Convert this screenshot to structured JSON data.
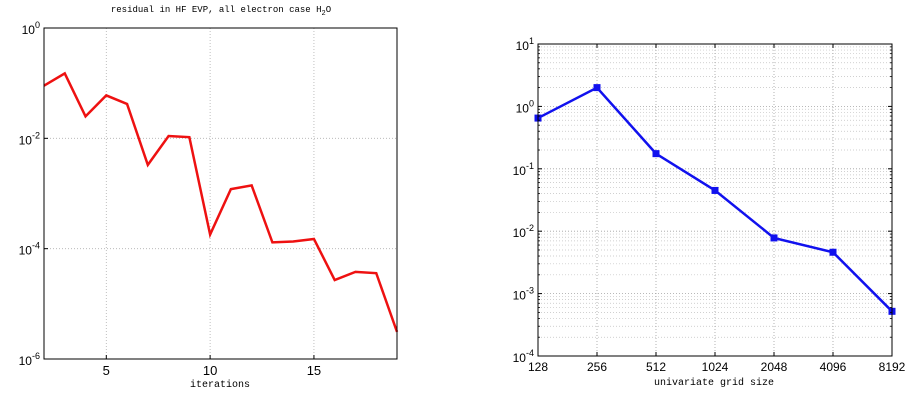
{
  "chart_data": [
    {
      "type": "line",
      "title": "residual in HF EVP, all electron case H",
      "title_subscript": "2",
      "title_suffix": "O",
      "xlabel": "iterations",
      "ylabel": "",
      "xlim": [
        2,
        19
      ],
      "ylim": [
        1e-06,
        1
      ],
      "yscale": "log",
      "grid": true,
      "line_color": "#ee1111",
      "xticks": [
        {
          "value": 5,
          "label": "5"
        },
        {
          "value": 10,
          "label": "10"
        },
        {
          "value": 15,
          "label": "15"
        }
      ],
      "yticks": [
        {
          "value": 1,
          "base": "10",
          "exp": "0"
        },
        {
          "value": 0.01,
          "base": "10",
          "exp": "-2"
        },
        {
          "value": 0.0001,
          "base": "10",
          "exp": "-4"
        },
        {
          "value": 1e-06,
          "base": "10",
          "exp": "-6"
        }
      ],
      "x": [
        2,
        3,
        4,
        5,
        6,
        7,
        8,
        9,
        10,
        11,
        12,
        13,
        14,
        15,
        16,
        17,
        18,
        19
      ],
      "y": [
        0.09,
        0.15,
        0.025,
        0.06,
        0.042,
        0.0033,
        0.011,
        0.0105,
        0.00018,
        0.0012,
        0.0014,
        0.00013,
        0.000135,
        0.00015,
        2.7e-05,
        3.8e-05,
        3.6e-05,
        3.1e-06
      ]
    },
    {
      "type": "line",
      "title": "",
      "xlabel": "univariate grid size",
      "ylabel": "",
      "ylim": [
        0.0001,
        10
      ],
      "yscale": "log",
      "grid": true,
      "minor_grid": true,
      "line_color": "#1111ee",
      "marker": "square",
      "categories": [
        "128",
        "256",
        "512",
        "1024",
        "2048",
        "4096",
        "8192"
      ],
      "yticks": [
        {
          "value": 10,
          "base": "10",
          "exp": "1"
        },
        {
          "value": 1,
          "base": "10",
          "exp": "0"
        },
        {
          "value": 0.1,
          "base": "10",
          "exp": "-1"
        },
        {
          "value": 0.01,
          "base": "10",
          "exp": "-2"
        },
        {
          "value": 0.001,
          "base": "10",
          "exp": "-3"
        },
        {
          "value": 0.0001,
          "base": "10",
          "exp": "-4"
        }
      ],
      "y": [
        0.65,
        2.0,
        0.175,
        0.045,
        0.0078,
        0.0046,
        0.00052
      ]
    }
  ]
}
